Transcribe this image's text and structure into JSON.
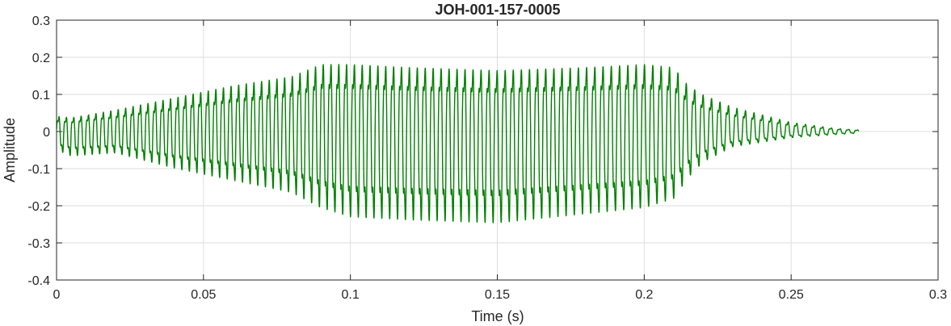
{
  "chart_data": {
    "type": "line",
    "title": "JOH-001-157-0005",
    "xlabel": "Time (s)",
    "ylabel": "Amplitude",
    "xlim": [
      0,
      0.3
    ],
    "ylim": [
      -0.4,
      0.3
    ],
    "xticks": [
      0,
      0.05,
      0.1,
      0.15,
      0.2,
      0.25,
      0.3
    ],
    "xtick_labels": [
      "0",
      "0.05",
      "0.1",
      "0.15",
      "0.2",
      "0.25",
      "0.3"
    ],
    "yticks": [
      -0.4,
      -0.3,
      -0.2,
      -0.1,
      0,
      0.1,
      0.2,
      0.3
    ],
    "ytick_labels": [
      "-0.4",
      "-0.3",
      "-0.2",
      "-0.1",
      "0",
      "0.1",
      "0.2",
      "0.3"
    ],
    "grid": true,
    "line_color": "#008000",
    "signal": {
      "start_time": 0,
      "end_time": 0.273,
      "approx_frequency_hz": 400,
      "envelope": {
        "t": [
          0,
          0.005,
          0.02,
          0.04,
          0.06,
          0.08,
          0.09,
          0.1,
          0.12,
          0.15,
          0.18,
          0.2,
          0.21,
          0.215,
          0.22,
          0.23,
          0.25,
          0.265,
          0.273
        ],
        "upper": [
          0.05,
          0.045,
          0.07,
          0.11,
          0.15,
          0.18,
          0.22,
          0.22,
          0.21,
          0.2,
          0.21,
          0.22,
          0.21,
          0.15,
          0.12,
          0.08,
          0.03,
          0.01,
          0.005
        ],
        "lower": [
          -0.06,
          -0.08,
          -0.07,
          -0.12,
          -0.16,
          -0.2,
          -0.25,
          -0.28,
          -0.29,
          -0.3,
          -0.27,
          -0.25,
          -0.22,
          -0.15,
          -0.1,
          -0.05,
          -0.02,
          -0.01,
          -0.005
        ]
      }
    }
  }
}
